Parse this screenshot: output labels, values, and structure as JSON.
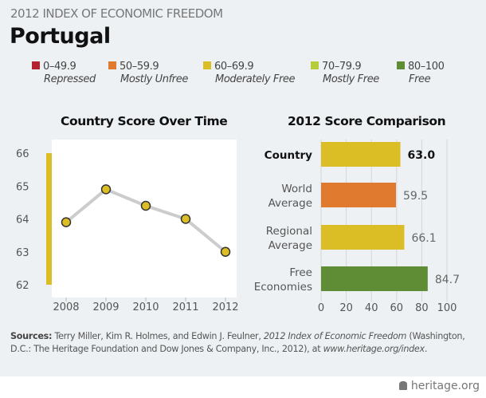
{
  "header": {
    "kicker": "2012 INDEX OF ECONOMIC FREEDOM",
    "title": "Portugal"
  },
  "legend": [
    {
      "range": "0–49.9",
      "label": "Repressed",
      "color": "#b5202e"
    },
    {
      "range": "50–59.9",
      "label": "Mostly Unfree",
      "color": "#e07a2e"
    },
    {
      "range": "60–69.9",
      "label": "Moderately Free",
      "color": "#dbbd26"
    },
    {
      "range": "70–79.9",
      "label": "Mostly Free",
      "color": "#b6cc3a"
    },
    {
      "range": "80–100",
      "label": "Free",
      "color": "#5e8d35"
    }
  ],
  "chart_data": [
    {
      "type": "line",
      "title": "Country Score Over Time",
      "x": [
        "2008",
        "2009",
        "2010",
        "2011",
        "2012"
      ],
      "values": [
        63.9,
        64.9,
        64.4,
        64.0,
        63.0
      ],
      "ylim": [
        62,
        66
      ],
      "yticks": [
        "62",
        "63",
        "64",
        "65",
        "66"
      ],
      "band_color": "#dbbd26",
      "point_color": "#dbbd26",
      "line_color": "#cccccc"
    },
    {
      "type": "bar",
      "orientation": "horizontal",
      "title": "2012 Score Comparison",
      "categories": [
        [
          "Country"
        ],
        [
          "World",
          "Average"
        ],
        [
          "Regional",
          "Average"
        ],
        [
          "Free",
          "Economies"
        ]
      ],
      "values": [
        63.0,
        59.5,
        66.1,
        84.7
      ],
      "labels": [
        "63.0",
        "59.5",
        "66.1",
        "84.7"
      ],
      "colors": [
        "#dbbd26",
        "#e07a2e",
        "#dbbd26",
        "#5e8d35"
      ],
      "xlim": [
        0,
        100
      ],
      "xticks": [
        "0",
        "20",
        "40",
        "60",
        "80",
        "100"
      ],
      "grid": true
    }
  ],
  "sources": {
    "lead": "Sources:",
    "text1": " Terry Miller, Kim R. Holmes, and Edwin J. Feulner, ",
    "title": "2012 Index of Economic Freedom",
    "text2": " (Washington, D.C.: The Heritage Foundation and Dow Jones & Company, Inc., 2012), at ",
    "url": "www.heritage.org/index",
    "end": "."
  },
  "footer": {
    "brand": "heritage.org"
  }
}
